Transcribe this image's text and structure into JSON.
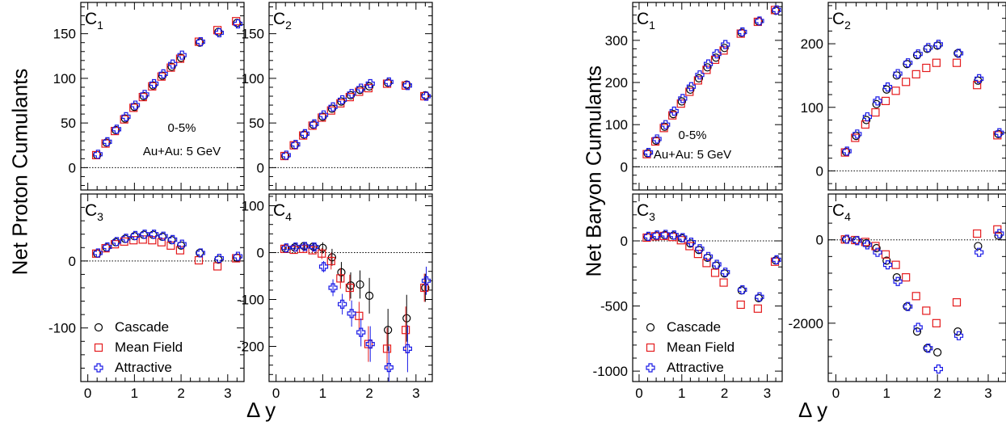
{
  "figure": {
    "left_ylabel": "Net Proton Cumulants",
    "right_ylabel": "Net Baryon Cumulants",
    "xlabel": "Δ y",
    "centrality": "0-5%",
    "system": "Au+Au: 5 GeV"
  },
  "legend": [
    {
      "name": "Cascade",
      "marker": "circle",
      "color": "#000000"
    },
    {
      "name": "Mean Field",
      "marker": "square",
      "color": "#e41a1c"
    },
    {
      "name": "Attractive",
      "marker": "cross",
      "color": "#1a1ae6"
    }
  ],
  "chart_data": [
    {
      "type": "scatter",
      "label": "C1",
      "group": "Net Proton Cumulants",
      "xlim": [
        -0.15,
        3.35
      ],
      "ylim": [
        -25,
        185
      ],
      "yticks": [
        0,
        50,
        100,
        150
      ],
      "xticks": [
        0,
        1,
        2,
        3
      ],
      "x": [
        0.2,
        0.4,
        0.6,
        0.8,
        1.0,
        1.2,
        1.4,
        1.6,
        1.8,
        2.0,
        2.4,
        2.8,
        3.2
      ],
      "series": [
        {
          "name": "Cascade",
          "values": [
            14,
            28,
            42,
            55,
            68,
            80,
            92,
            103,
            113,
            123,
            140,
            152,
            162
          ]
        },
        {
          "name": "Mean Field",
          "values": [
            14,
            27,
            41,
            54,
            67,
            79,
            91,
            102,
            112,
            122,
            141,
            154,
            164
          ]
        },
        {
          "name": "Attractive",
          "values": [
            15,
            29,
            43,
            57,
            70,
            82,
            94,
            105,
            116,
            126,
            141,
            151,
            161
          ]
        }
      ]
    },
    {
      "type": "scatter",
      "label": "C2",
      "group": "Net Proton Cumulants",
      "xlim": [
        -0.15,
        3.35
      ],
      "ylim": [
        -25,
        185
      ],
      "yticks": [
        0,
        50,
        100,
        150
      ],
      "xticks": [
        0,
        1,
        2,
        3
      ],
      "x": [
        0.2,
        0.4,
        0.6,
        0.8,
        1.0,
        1.2,
        1.4,
        1.6,
        1.8,
        2.0,
        2.4,
        2.8,
        3.2
      ],
      "series": [
        {
          "name": "Cascade",
          "values": [
            13,
            25,
            37,
            48,
            57,
            66,
            74,
            81,
            87,
            91,
            95,
            93,
            81
          ]
        },
        {
          "name": "Mean Field",
          "values": [
            13,
            25,
            36,
            47,
            56,
            64,
            72,
            79,
            85,
            89,
            94,
            92,
            80
          ]
        },
        {
          "name": "Attractive",
          "values": [
            14,
            26,
            38,
            49,
            59,
            68,
            76,
            83,
            89,
            94,
            96,
            92,
            80
          ]
        }
      ]
    },
    {
      "type": "scatter",
      "label": "C3",
      "group": "Net Proton Cumulants",
      "xlim": [
        -0.15,
        3.35
      ],
      "ylim": [
        -180,
        100
      ],
      "yticks": [
        -100,
        0
      ],
      "xticks": [
        0,
        1,
        2,
        3
      ],
      "x": [
        0.2,
        0.4,
        0.6,
        0.8,
        1.0,
        1.2,
        1.4,
        1.6,
        1.8,
        2.0,
        2.4,
        2.8,
        3.2
      ],
      "series": [
        {
          "name": "Cascade",
          "values": [
            11,
            20,
            28,
            33,
            37,
            39,
            39,
            36,
            31,
            23,
            12,
            2,
            5
          ]
        },
        {
          "name": "Mean Field",
          "values": [
            11,
            19,
            25,
            29,
            31,
            32,
            31,
            28,
            23,
            16,
            1,
            -8,
            4
          ]
        },
        {
          "name": "Attractive",
          "values": [
            12,
            21,
            29,
            34,
            38,
            40,
            40,
            37,
            32,
            25,
            12,
            4,
            7
          ]
        }
      ]
    },
    {
      "type": "scatter",
      "label": "C4",
      "group": "Net Proton Cumulants",
      "xlim": [
        -0.15,
        3.35
      ],
      "ylim": [
        -275,
        125
      ],
      "yticks": [
        -200,
        -100,
        0,
        100
      ],
      "xticks": [
        0,
        1,
        2,
        3
      ],
      "x": [
        0.2,
        0.4,
        0.6,
        0.8,
        1.0,
        1.2,
        1.4,
        1.6,
        1.8,
        2.0,
        2.4,
        2.8,
        3.2
      ],
      "series": [
        {
          "name": "Cascade",
          "values": [
            9,
            11,
            14,
            13,
            10,
            -10,
            -42,
            -70,
            -68,
            -92,
            -165,
            -140,
            -75
          ]
        },
        {
          "name": "Mean Field",
          "values": [
            8,
            6,
            8,
            5,
            -2,
            -18,
            -55,
            -75,
            -135,
            -195,
            -205,
            -165,
            -75
          ]
        },
        {
          "name": "Attractive",
          "values": [
            10,
            12,
            13,
            12,
            -30,
            -75,
            -110,
            -130,
            -170,
            -195,
            -245,
            -205,
            -60
          ]
        }
      ],
      "errors": [
        [
          4,
          5,
          7,
          8,
          12,
          18,
          22,
          28,
          30,
          38,
          45,
          50,
          30
        ],
        [
          4,
          5,
          7,
          8,
          12,
          18,
          22,
          28,
          30,
          38,
          45,
          50,
          30
        ],
        [
          4,
          5,
          7,
          8,
          12,
          18,
          22,
          28,
          30,
          38,
          45,
          50,
          30
        ]
      ]
    },
    {
      "type": "scatter",
      "label": "C1",
      "group": "Net Baryon Cumulants",
      "xlim": [
        -0.15,
        3.35
      ],
      "ylim": [
        -55,
        390
      ],
      "yticks": [
        0,
        100,
        200,
        300
      ],
      "xticks": [
        0,
        1,
        2,
        3
      ],
      "x": [
        0.2,
        0.4,
        0.6,
        0.8,
        1.0,
        1.2,
        1.4,
        1.6,
        1.8,
        2.0,
        2.4,
        2.8,
        3.2
      ],
      "series": [
        {
          "name": "Cascade",
          "values": [
            32,
            62,
            95,
            125,
            155,
            183,
            210,
            236,
            259,
            282,
            318,
            345,
            370
          ]
        },
        {
          "name": "Mean Field",
          "values": [
            30,
            60,
            92,
            122,
            150,
            178,
            205,
            230,
            254,
            276,
            316,
            344,
            372
          ]
        },
        {
          "name": "Attractive",
          "values": [
            34,
            66,
            100,
            132,
            162,
            190,
            218,
            244,
            268,
            290,
            320,
            346,
            372
          ]
        }
      ]
    },
    {
      "type": "scatter",
      "label": "C2",
      "group": "Net Baryon Cumulants",
      "xlim": [
        -0.15,
        3.35
      ],
      "ylim": [
        -30,
        265
      ],
      "yticks": [
        0,
        100,
        200
      ],
      "xticks": [
        0,
        1,
        2,
        3
      ],
      "x": [
        0.2,
        0.4,
        0.6,
        0.8,
        1.0,
        1.2,
        1.4,
        1.6,
        1.8,
        2.0,
        2.4,
        2.8,
        3.2
      ],
      "series": [
        {
          "name": "Cascade",
          "values": [
            30,
            55,
            80,
            105,
            128,
            150,
            168,
            182,
            192,
            197,
            185,
            142,
            58
          ]
        },
        {
          "name": "Mean Field",
          "values": [
            29,
            52,
            73,
            92,
            110,
            126,
            140,
            152,
            162,
            170,
            170,
            135,
            56
          ]
        },
        {
          "name": "Attractive",
          "values": [
            31,
            58,
            85,
            110,
            132,
            153,
            170,
            184,
            194,
            199,
            185,
            145,
            60
          ]
        }
      ]
    },
    {
      "type": "scatter",
      "label": "C3",
      "group": "Net Baryon Cumulants",
      "xlim": [
        -0.15,
        3.35
      ],
      "ylim": [
        -1080,
        360
      ],
      "yticks": [
        -1000,
        -500,
        0
      ],
      "xticks": [
        0,
        1,
        2,
        3
      ],
      "x": [
        0.2,
        0.4,
        0.6,
        0.8,
        1.0,
        1.2,
        1.4,
        1.6,
        1.8,
        2.0,
        2.4,
        2.8,
        3.2
      ],
      "series": [
        {
          "name": "Cascade",
          "values": [
            30,
            40,
            45,
            40,
            20,
            -20,
            -70,
            -130,
            -190,
            -250,
            -380,
            -440,
            -150
          ]
        },
        {
          "name": "Mean Field",
          "values": [
            25,
            35,
            38,
            30,
            5,
            -40,
            -100,
            -170,
            -245,
            -320,
            -490,
            -520,
            -160
          ]
        },
        {
          "name": "Attractive",
          "values": [
            35,
            45,
            50,
            45,
            25,
            -10,
            -60,
            -120,
            -180,
            -240,
            -375,
            -430,
            -145
          ]
        }
      ]
    },
    {
      "type": "scatter",
      "label": "C4",
      "group": "Net Baryon Cumulants",
      "xlim": [
        -0.15,
        3.35
      ],
      "ylim": [
        -3400,
        1100
      ],
      "yticks": [
        -2000,
        0
      ],
      "xticks": [
        0,
        1,
        2,
        3
      ],
      "x": [
        0.2,
        0.4,
        0.6,
        0.8,
        1.0,
        1.2,
        1.4,
        1.6,
        1.8,
        2.0,
        2.4,
        2.8,
        3.2
      ],
      "series": [
        {
          "name": "Cascade",
          "values": [
            10,
            -10,
            -80,
            -200,
            -500,
            -900,
            -1600,
            -2200,
            -2600,
            -2700,
            -2200,
            -150,
            100
          ]
        },
        {
          "name": "Mean Field",
          "values": [
            10,
            -5,
            -50,
            -150,
            -350,
            -600,
            -900,
            -1350,
            -1700,
            -2000,
            -1500,
            150,
            250
          ]
        },
        {
          "name": "Attractive",
          "values": [
            15,
            -20,
            -120,
            -300,
            -600,
            -1000,
            -1600,
            -2100,
            -2600,
            -3100,
            -2300,
            -300,
            150
          ]
        }
      ]
    }
  ]
}
